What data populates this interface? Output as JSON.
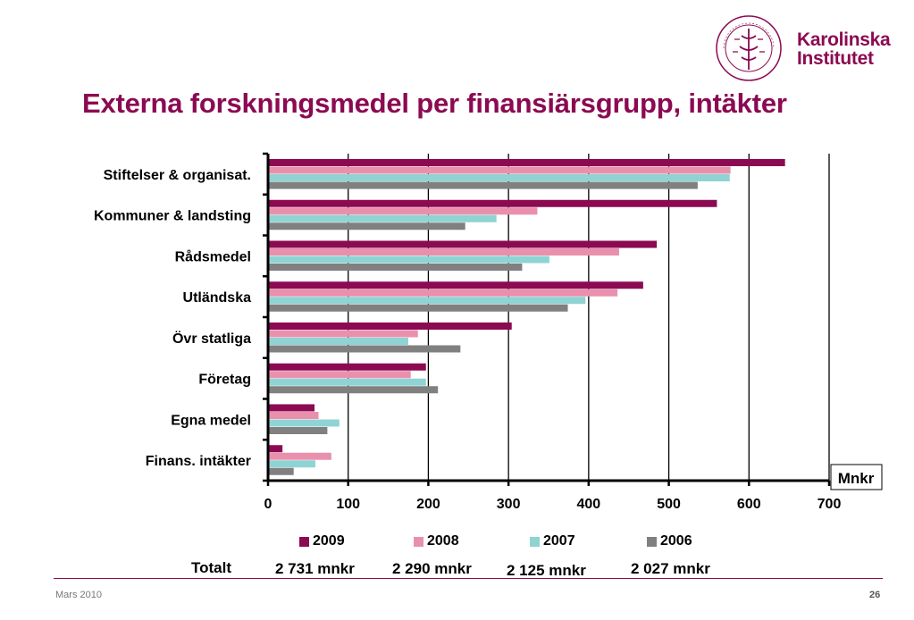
{
  "slide": {
    "title": "Externa forskningsmedel per finansiärsgrupp, intäkter",
    "logo": {
      "line1": "Karolinska",
      "line2": "Institutet",
      "seal_text": "KAROLINSKA INSTITUTET · ANNO 1810"
    },
    "footer": {
      "date": "Mars 2010",
      "page": "26"
    },
    "totals": {
      "label": "Totalt",
      "values": [
        "2 731 mnkr",
        "2 290 mnkr",
        "2 125 mnkr",
        "2 027 mnkr"
      ]
    }
  },
  "colors": {
    "brand": "#8b0a52"
  },
  "chart_data": {
    "type": "bar",
    "orientation": "horizontal",
    "categories": [
      "Stiftelser & organisat.",
      "Kommuner & landsting",
      "Rådsmedel",
      "Utländska",
      "Övr statliga",
      "Företag",
      "Egna medel",
      "Finans. intäkter"
    ],
    "series": [
      {
        "name": "2009",
        "color": "#8b0a52",
        "values": [
          645,
          560,
          485,
          468,
          304,
          197,
          58,
          18
        ]
      },
      {
        "name": "2008",
        "color": "#e990ad",
        "values": [
          577,
          336,
          438,
          436,
          187,
          178,
          63,
          79
        ]
      },
      {
        "name": "2007",
        "color": "#8fd3d3",
        "values": [
          576,
          285,
          351,
          396,
          175,
          197,
          89,
          59
        ]
      },
      {
        "name": "2006",
        "color": "#808080",
        "values": [
          536,
          246,
          317,
          374,
          240,
          212,
          74,
          32
        ]
      }
    ],
    "xlim": [
      0,
      700
    ],
    "xticks": [
      0,
      100,
      200,
      300,
      400,
      500,
      600,
      700
    ],
    "unit": "Mnkr",
    "grid": true,
    "legend": "bottom"
  }
}
